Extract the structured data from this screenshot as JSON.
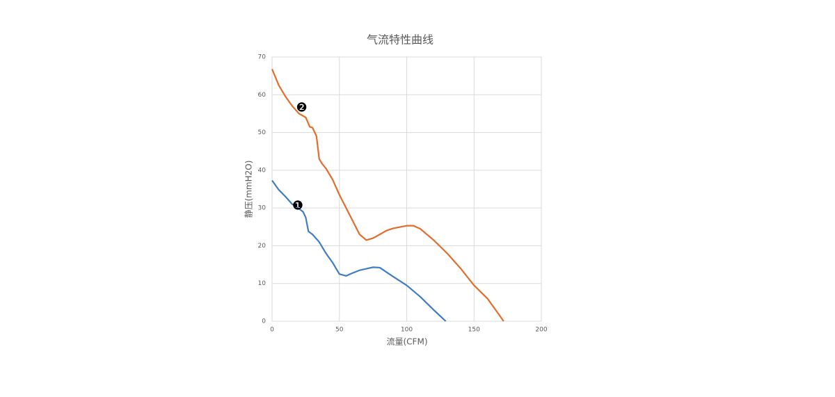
{
  "chart_data": {
    "type": "line",
    "title": "气流特性曲线",
    "x_label": "流量(CFM)",
    "y_label": "静压(mmH2O)",
    "xlim": [
      0,
      200
    ],
    "xticks": [
      0,
      50,
      100,
      150,
      200
    ],
    "ylim": [
      0,
      70
    ],
    "yticks": [
      0,
      10,
      20,
      30,
      40,
      50,
      60,
      70
    ],
    "grid": true,
    "series": [
      {
        "color": "#3f7cc4",
        "x": [
          0,
          5,
          10,
          15,
          20,
          23,
          25,
          27,
          30,
          35,
          40,
          45,
          50,
          55,
          60,
          65,
          70,
          75,
          80,
          85,
          90,
          100,
          110,
          120,
          129
        ],
        "values": [
          37.3,
          34.8,
          33,
          31,
          29.8,
          29,
          27.5,
          23.8,
          23,
          21,
          18,
          15.5,
          12.5,
          12,
          12.8,
          13.5,
          13.9,
          14.3,
          14.2,
          13,
          11.8,
          9.5,
          6.5,
          3,
          0
        ]
      },
      {
        "color": "#e46c2a",
        "x": [
          0,
          5,
          10,
          15,
          20,
          25,
          28,
          30,
          33,
          35,
          37,
          40,
          45,
          50,
          55,
          60,
          65,
          70,
          75,
          80,
          85,
          90,
          100,
          105,
          110,
          120,
          130,
          140,
          150,
          160,
          165,
          172
        ],
        "values": [
          66.8,
          62.5,
          59.5,
          57,
          55,
          54,
          51.5,
          51.3,
          49,
          43,
          41.8,
          40.5,
          37.5,
          33.5,
          30,
          26.5,
          23,
          21.5,
          22,
          23,
          24,
          24.6,
          25.3,
          25.3,
          24.5,
          21.5,
          18,
          14,
          9.5,
          6,
          3.5,
          0
        ]
      }
    ],
    "annotations": [
      {
        "text": "❶",
        "x": 19,
        "y": 30.5
      },
      {
        "text": "❷",
        "x": 22,
        "y": 56.5
      }
    ]
  }
}
